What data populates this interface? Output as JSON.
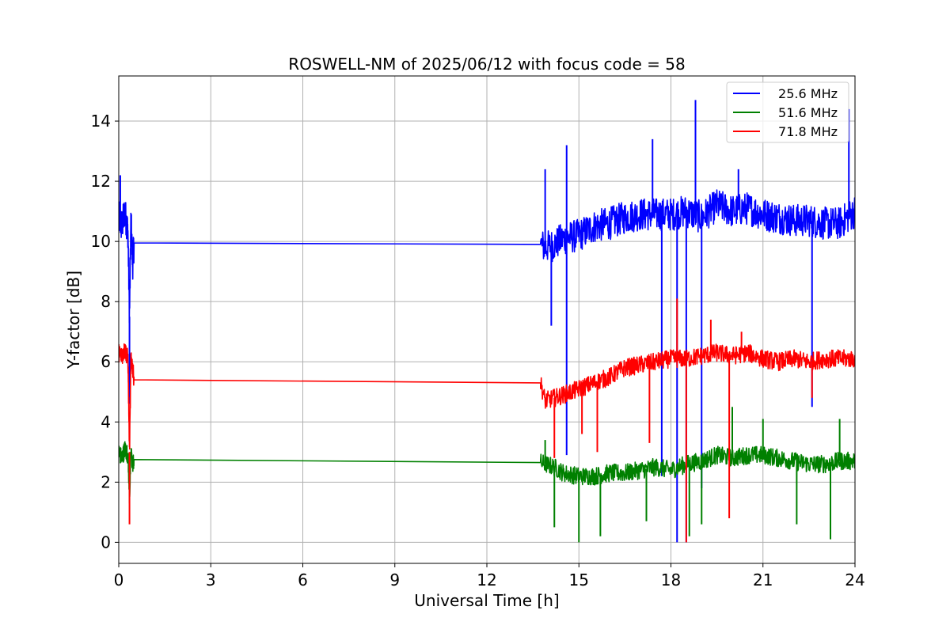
{
  "chart_data": {
    "type": "line",
    "title": "ROSWELL-NM of 2025/06/12 with focus code = 58",
    "xlabel": "Universal Time [h]",
    "ylabel": "Y-factor [dB]",
    "xlim": [
      0,
      24
    ],
    "ylim": [
      -0.7,
      15.5
    ],
    "xticks": [
      0,
      3,
      6,
      9,
      12,
      15,
      18,
      21,
      24
    ],
    "yticks": [
      0,
      2,
      4,
      6,
      8,
      10,
      12,
      14
    ],
    "grid": true,
    "legend_position": "top-right",
    "series": [
      {
        "name": "25.6 MHz",
        "color": "#0000ff",
        "x": [
          0.0,
          0.1,
          0.2,
          0.3,
          0.35,
          0.4,
          0.45,
          0.5,
          13.75,
          13.9,
          14.2,
          14.5,
          15.0,
          15.5,
          16.0,
          16.5,
          17.0,
          17.5,
          18.0,
          18.5,
          19.0,
          19.5,
          20.0,
          20.5,
          21.0,
          21.5,
          22.0,
          22.5,
          23.0,
          23.5,
          24.0
        ],
        "y": [
          10.8,
          10.5,
          11.0,
          10.3,
          7.5,
          10.8,
          9.2,
          9.95,
          9.9,
          9.8,
          9.9,
          10.1,
          10.2,
          10.5,
          10.6,
          10.8,
          10.9,
          10.9,
          10.9,
          11.0,
          10.8,
          11.2,
          11.0,
          11.1,
          10.9,
          10.8,
          10.7,
          10.7,
          10.6,
          10.6,
          11.0
        ],
        "spikes_high": [
          [
            0.05,
            12.2
          ],
          [
            13.9,
            12.4
          ],
          [
            14.6,
            13.2
          ],
          [
            17.4,
            13.4
          ],
          [
            18.8,
            14.7
          ],
          [
            20.2,
            12.4
          ],
          [
            23.8,
            14.4
          ]
        ],
        "spikes_low": [
          [
            0.35,
            4.6
          ],
          [
            14.1,
            7.2
          ],
          [
            14.6,
            2.9
          ],
          [
            17.7,
            2.2
          ],
          [
            18.2,
            0.0
          ],
          [
            18.5,
            0.0
          ],
          [
            19.0,
            1.8
          ],
          [
            22.6,
            4.5
          ]
        ]
      },
      {
        "name": "51.6 MHz",
        "color": "#008000",
        "x": [
          0.0,
          0.1,
          0.2,
          0.3,
          0.35,
          0.4,
          0.45,
          0.5,
          13.75,
          13.9,
          14.2,
          14.5,
          15.0,
          15.5,
          16.0,
          16.5,
          17.0,
          17.5,
          18.0,
          18.5,
          19.0,
          19.5,
          20.0,
          20.5,
          21.0,
          21.5,
          22.0,
          22.5,
          23.0,
          23.5,
          24.0
        ],
        "y": [
          3.0,
          2.8,
          3.1,
          2.9,
          1.5,
          3.0,
          2.6,
          2.75,
          2.65,
          2.6,
          2.5,
          2.3,
          2.2,
          2.2,
          2.3,
          2.3,
          2.4,
          2.5,
          2.4,
          2.6,
          2.7,
          2.9,
          2.8,
          2.9,
          2.9,
          2.8,
          2.7,
          2.6,
          2.6,
          2.7,
          2.7
        ],
        "spikes_high": [
          [
            13.9,
            3.4
          ],
          [
            20.0,
            4.5
          ],
          [
            21.0,
            4.1
          ],
          [
            23.5,
            4.1
          ]
        ],
        "spikes_low": [
          [
            14.2,
            0.5
          ],
          [
            15.0,
            0.0
          ],
          [
            15.7,
            0.2
          ],
          [
            17.2,
            0.7
          ],
          [
            18.6,
            0.2
          ],
          [
            19.0,
            0.6
          ],
          [
            22.1,
            0.6
          ],
          [
            23.2,
            0.1
          ]
        ]
      },
      {
        "name": "71.8 MHz",
        "color": "#ff0000",
        "x": [
          0.0,
          0.1,
          0.2,
          0.3,
          0.35,
          0.4,
          0.45,
          0.5,
          13.75,
          13.9,
          14.2,
          14.5,
          15.0,
          15.5,
          16.0,
          16.5,
          17.0,
          17.5,
          18.0,
          18.5,
          19.0,
          19.5,
          20.0,
          20.5,
          21.0,
          21.5,
          22.0,
          22.5,
          23.0,
          23.5,
          24.0
        ],
        "y": [
          6.3,
          6.2,
          6.4,
          6.1,
          3.0,
          6.2,
          5.8,
          5.4,
          5.3,
          4.7,
          4.8,
          4.9,
          5.1,
          5.3,
          5.5,
          5.8,
          5.9,
          6.0,
          6.1,
          6.1,
          6.2,
          6.3,
          6.2,
          6.3,
          6.1,
          6.0,
          6.1,
          6.0,
          6.1,
          6.1,
          6.1
        ],
        "spikes_high": [
          [
            18.2,
            8.1
          ],
          [
            19.3,
            7.4
          ],
          [
            20.3,
            7.0
          ]
        ],
        "spikes_low": [
          [
            0.35,
            0.6
          ],
          [
            14.2,
            2.8
          ],
          [
            15.1,
            3.6
          ],
          [
            15.6,
            3.0
          ],
          [
            17.3,
            3.3
          ],
          [
            18.5,
            0.0
          ],
          [
            19.9,
            0.8
          ],
          [
            22.6,
            4.8
          ]
        ]
      }
    ]
  }
}
